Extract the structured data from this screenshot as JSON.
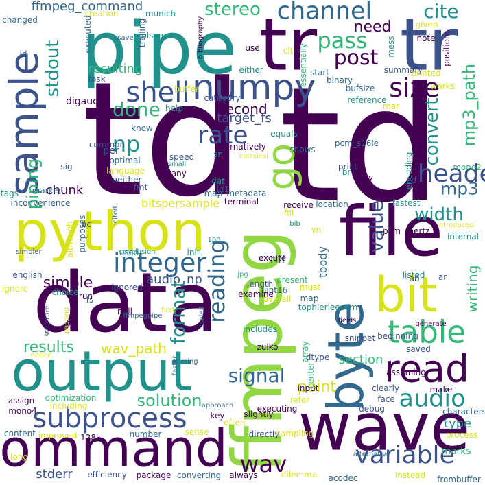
{
  "palette": {
    "background": "#ffffff",
    "dark_purple": "#440154",
    "indigo": "#3b528b",
    "steel_blue": "#31688e",
    "teal": "#21918c",
    "green": "#35b779",
    "lime": "#90d743",
    "yellow": "#d8e219"
  },
  "words": [
    "td",
    "td",
    "pipe",
    "tr",
    "tr",
    "file",
    "data",
    "wave",
    "ffmpeg",
    "output",
    "python",
    "byte",
    "command",
    "bit",
    "go",
    "sample",
    "numpy",
    "read",
    "subprocess",
    "table",
    "audio",
    "shell",
    "channel",
    "integer",
    "variable",
    "header",
    "size",
    "stereo",
    "cite",
    "pass",
    "post",
    "np",
    "rate",
    "done",
    "signal",
    "wav",
    "format",
    "reading",
    "value",
    "piping",
    "stdout",
    "results",
    "width",
    "mp3",
    "convert",
    "mp3_path",
    "wav_path",
    "solution",
    "simple",
    "writing",
    "point",
    "resulting",
    "second",
    "target_fs",
    "need",
    "ffmpeg_command",
    "chunk",
    "audio_np",
    "riff",
    "type",
    "bitspersample",
    "marks",
    "stderr",
    "tbody",
    "section",
    "digaud",
    "creation",
    "changed",
    "munich",
    "trailing",
    "colspan",
    "executed",
    "task",
    "buffer",
    "either",
    "essentially",
    "clt",
    "start",
    "summary",
    "printed",
    "works",
    "binary",
    "bufsize",
    "reference",
    "mar",
    "use",
    "mess",
    "note",
    "given",
    "positions",
    "save",
    "bibliography",
    "id",
    "category",
    "help",
    "alternatively",
    "equals",
    "pcm_s16le",
    "encoding",
    "mono2",
    "cd",
    "print",
    "way",
    "br",
    "shows",
    "classical",
    "sn",
    "per",
    "optimal",
    "speed",
    "small",
    "language",
    "many",
    "neither",
    "fmt",
    "dat",
    "terminal",
    "receive",
    "location",
    "fastest",
    "inconvenience",
    "tags",
    "marker",
    "sig",
    "know",
    "common",
    "id1",
    "map_metadata",
    "fill",
    "bib",
    "vn",
    "pcm",
    "hertz",
    "introduced",
    "internal",
    "ac",
    "cited",
    "although",
    "purposes",
    "conclusion",
    "init",
    "used",
    "excute",
    "ab",
    "listed",
    "ar",
    "english",
    "ignore",
    "choice",
    "ignored",
    "run",
    "fs",
    "length",
    "present",
    "must",
    "map",
    "tophlerleecom",
    "overall",
    "uint16",
    "examine",
    "null",
    "first",
    "ffmpegpipe",
    "table4",
    "structure",
    "passing",
    "includes",
    "zulko",
    "array",
    "center",
    "beginning",
    "snippet",
    "saved",
    "dtype",
    "assuming",
    "input",
    "clearly",
    "make",
    "face",
    "notice",
    "parsing",
    "assign",
    "optimization",
    "faster",
    "including",
    "mono4",
    "approach",
    "key",
    "executing",
    "slightly",
    "refer",
    "debug",
    "characters",
    "content",
    "improved",
    "128k",
    "number",
    "sense",
    "often",
    "directly",
    "sampling",
    "process",
    "long",
    "efficiency",
    "package",
    "converting",
    "always",
    "dilemma",
    "acodec",
    "alternative",
    "instead",
    "frombuffer",
    "simpler",
    "100",
    "jpg",
    "fields",
    "generate"
  ]
}
